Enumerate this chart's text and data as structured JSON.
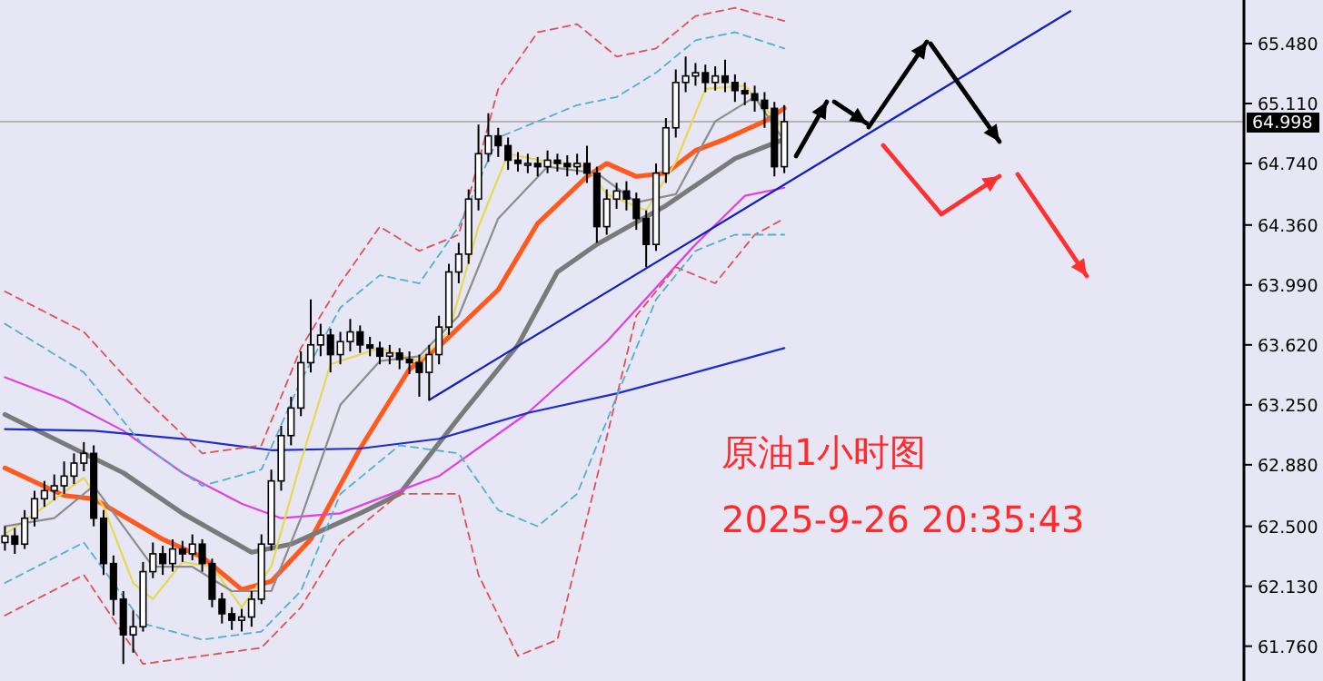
{
  "chart_data": {
    "type": "candlestick",
    "categories": [
      null,
      null,
      null,
      null,
      null,
      null,
      null,
      null,
      null,
      null,
      null,
      null,
      null,
      null,
      null,
      null,
      null,
      null,
      null,
      null,
      null,
      null,
      null,
      null,
      null,
      null,
      null,
      null,
      null,
      null,
      null,
      null,
      null,
      null,
      null,
      null,
      null,
      null,
      null,
      null,
      null,
      null,
      null,
      null,
      null,
      null,
      null,
      null,
      null,
      null,
      null,
      null,
      null,
      null,
      null,
      null,
      null,
      null,
      null,
      null,
      null,
      null,
      null,
      null,
      null,
      null,
      null,
      null,
      null,
      null,
      null,
      null,
      null,
      null,
      null,
      null,
      null,
      null,
      null,
      null,
      null,
      null,
      null,
      null,
      null,
      null,
      null,
      null,
      null,
      null,
      null,
      null,
      null,
      null,
      null,
      null,
      null,
      null,
      null,
      null,
      null,
      null,
      null,
      null,
      null,
      null,
      null,
      null,
      null,
      null,
      null,
      null,
      null,
      null,
      null,
      null,
      null,
      null,
      null,
      null,
      null,
      null,
      null,
      null,
      null,
      null
    ],
    "ohlc": [
      [
        62.4,
        62.5,
        62.35,
        62.44
      ],
      [
        62.44,
        62.49,
        62.33,
        62.39
      ],
      [
        62.39,
        62.6,
        62.36,
        62.55
      ],
      [
        62.55,
        62.72,
        62.5,
        62.67
      ],
      [
        62.67,
        62.78,
        62.62,
        62.72
      ],
      [
        62.72,
        62.82,
        62.66,
        62.75
      ],
      [
        62.75,
        62.9,
        62.7,
        62.81
      ],
      [
        62.81,
        62.95,
        62.76,
        62.89
      ],
      [
        62.89,
        63.02,
        62.84,
        62.95
      ],
      [
        62.95,
        63.0,
        62.5,
        62.55
      ],
      [
        62.55,
        62.6,
        62.2,
        62.27
      ],
      [
        62.27,
        62.32,
        61.95,
        62.05
      ],
      [
        62.05,
        62.1,
        61.65,
        61.83
      ],
      [
        61.83,
        61.98,
        61.72,
        61.88
      ],
      [
        61.88,
        62.28,
        61.85,
        62.22
      ],
      [
        62.22,
        62.4,
        62.18,
        62.33
      ],
      [
        62.33,
        62.38,
        62.2,
        62.27
      ],
      [
        62.27,
        62.42,
        62.22,
        62.36
      ],
      [
        62.36,
        62.41,
        62.28,
        62.33
      ],
      [
        62.33,
        62.45,
        62.29,
        62.39
      ],
      [
        62.39,
        62.42,
        62.22,
        62.27
      ],
      [
        62.27,
        62.3,
        62.0,
        62.05
      ],
      [
        62.05,
        62.09,
        61.9,
        61.96
      ],
      [
        61.96,
        62.0,
        61.86,
        61.92
      ],
      [
        61.92,
        61.99,
        61.85,
        61.94
      ],
      [
        61.94,
        62.1,
        61.88,
        62.05
      ],
      [
        62.05,
        62.45,
        62.02,
        62.39
      ],
      [
        62.39,
        62.85,
        62.35,
        62.78
      ],
      [
        62.78,
        63.12,
        62.72,
        63.06
      ],
      [
        63.06,
        63.3,
        63.0,
        63.23
      ],
      [
        63.23,
        63.58,
        63.18,
        63.51
      ],
      [
        63.51,
        63.9,
        63.45,
        63.62
      ],
      [
        63.62,
        63.75,
        63.55,
        63.68
      ],
      [
        63.68,
        63.72,
        63.45,
        63.56
      ],
      [
        63.56,
        63.7,
        63.5,
        63.64
      ],
      [
        63.64,
        63.78,
        63.58,
        63.7
      ],
      [
        63.7,
        63.74,
        63.57,
        63.62
      ],
      [
        63.62,
        63.67,
        63.55,
        63.6
      ],
      [
        63.6,
        63.64,
        63.5,
        63.55
      ],
      [
        63.55,
        63.62,
        63.5,
        63.57
      ],
      [
        63.57,
        63.6,
        63.47,
        63.53
      ],
      [
        63.53,
        63.58,
        63.44,
        63.51
      ],
      [
        63.51,
        63.56,
        63.3,
        63.45
      ],
      [
        63.45,
        63.62,
        63.28,
        63.56
      ],
      [
        63.56,
        63.8,
        63.5,
        63.73
      ],
      [
        63.73,
        64.12,
        63.68,
        64.07
      ],
      [
        64.07,
        64.25,
        64.0,
        64.18
      ],
      [
        64.18,
        64.58,
        64.12,
        64.52
      ],
      [
        64.52,
        64.98,
        64.45,
        64.8
      ],
      [
        64.8,
        65.05,
        64.75,
        64.91
      ],
      [
        64.91,
        64.96,
        64.78,
        64.85
      ],
      [
        64.85,
        64.9,
        64.7,
        64.76
      ],
      [
        64.76,
        64.81,
        64.69,
        64.74
      ],
      [
        64.74,
        64.8,
        64.68,
        64.74
      ],
      [
        64.74,
        64.78,
        64.66,
        64.72
      ],
      [
        64.72,
        64.82,
        64.68,
        64.76
      ],
      [
        64.76,
        64.8,
        64.69,
        64.74
      ],
      [
        64.74,
        64.79,
        64.66,
        64.72
      ],
      [
        64.72,
        64.8,
        64.67,
        64.74
      ],
      [
        64.74,
        64.85,
        64.62,
        64.68
      ],
      [
        64.68,
        64.72,
        64.25,
        64.35
      ],
      [
        64.35,
        64.58,
        64.3,
        64.52
      ],
      [
        64.52,
        64.62,
        64.46,
        64.57
      ],
      [
        64.57,
        64.63,
        64.45,
        64.52
      ],
      [
        64.52,
        64.56,
        64.33,
        64.4
      ],
      [
        64.4,
        64.45,
        64.1,
        64.24
      ],
      [
        64.24,
        64.74,
        64.2,
        64.68
      ],
      [
        64.68,
        65.02,
        64.62,
        64.96
      ],
      [
        64.96,
        65.32,
        64.9,
        65.24
      ],
      [
        65.24,
        65.4,
        65.18,
        65.28
      ],
      [
        65.28,
        65.36,
        65.22,
        65.3
      ],
      [
        65.3,
        65.35,
        65.18,
        65.24
      ],
      [
        65.24,
        65.34,
        65.19,
        65.28
      ],
      [
        65.28,
        65.38,
        65.18,
        65.24
      ],
      [
        65.24,
        65.29,
        65.12,
        65.19
      ],
      [
        65.19,
        65.24,
        65.1,
        65.17
      ],
      [
        65.17,
        65.22,
        65.06,
        65.13
      ],
      [
        65.13,
        65.18,
        64.96,
        65.08
      ],
      [
        65.08,
        65.12,
        64.66,
        64.72
      ],
      [
        64.72,
        65.1,
        64.68,
        64.998
      ],
      null,
      null,
      null,
      null,
      null,
      null,
      null,
      null,
      null,
      null,
      null,
      null,
      null,
      null,
      null,
      null,
      null,
      null,
      null,
      null,
      null,
      null,
      null,
      null,
      null,
      null,
      null,
      null,
      null,
      null,
      null,
      null,
      null,
      null,
      null,
      null,
      null,
      null,
      null,
      null,
      null,
      null,
      null,
      null,
      null,
      null
    ],
    "series": [
      {
        "type": "line",
        "color": "#ff5a1e",
        "values": [
          62.86,
          null,
          null,
          null,
          null,
          null,
          62.69,
          null,
          null,
          62.67,
          null,
          null,
          null,
          null,
          null,
          null,
          62.42,
          null,
          null,
          null,
          62.31,
          null,
          null,
          null,
          62.11,
          null,
          null,
          62.16,
          null,
          null,
          null,
          62.42,
          null,
          null,
          null,
          null,
          62.98,
          null,
          null,
          null,
          null,
          63.47,
          null,
          null,
          63.61,
          null,
          null,
          null,
          null,
          null,
          63.96,
          null,
          null,
          null,
          64.37,
          null,
          null,
          null,
          null,
          64.66,
          null,
          64.74,
          null,
          null,
          64.66,
          null,
          null,
          64.68,
          null,
          null,
          64.82,
          null,
          null,
          64.89,
          null,
          null,
          null,
          65.0,
          null,
          65.08,
          null,
          null,
          null,
          null,
          null,
          null,
          null,
          null,
          null,
          null,
          null,
          null,
          null,
          null,
          null,
          null,
          null,
          null,
          null,
          null,
          null,
          null,
          null,
          null,
          null,
          null,
          null,
          null,
          null,
          null,
          null,
          null,
          null,
          null,
          null,
          null,
          null,
          null,
          null,
          null,
          null,
          null,
          null,
          null,
          null,
          null
        ]
      },
      {
        "type": "line",
        "color": "#7a7a7a",
        "values": [
          63.19,
          null,
          null,
          null,
          null,
          null,
          null,
          62.98,
          null,
          null,
          null,
          null,
          62.83,
          null,
          null,
          null,
          null,
          null,
          62.58,
          null,
          null,
          null,
          null,
          null,
          null,
          62.34,
          null,
          null,
          null,
          62.39,
          null,
          null,
          null,
          null,
          null,
          null,
          62.58,
          null,
          null,
          null,
          62.7,
          null,
          null,
          null,
          null,
          null,
          63.17,
          null,
          null,
          null,
          null,
          null,
          63.62,
          null,
          null,
          null,
          64.07,
          null,
          null,
          null,
          64.24,
          null,
          null,
          null,
          null,
          null,
          null,
          64.48,
          null,
          null,
          null,
          null,
          null,
          null,
          64.77,
          null,
          null,
          null,
          null,
          64.89,
          null,
          null,
          null,
          null,
          null,
          null,
          null,
          null,
          null,
          null,
          null,
          null,
          null,
          null,
          null,
          null,
          null,
          null,
          null,
          null,
          null,
          null,
          null,
          null,
          null,
          null,
          null,
          null,
          null,
          null,
          null,
          null,
          null,
          null,
          null,
          null,
          null,
          null,
          null,
          null,
          null,
          null,
          null,
          null,
          null,
          null
        ]
      },
      {
        "type": "line",
        "color": "#e040e0",
        "values": [
          63.42,
          null,
          null,
          null,
          null,
          null,
          63.28,
          null,
          null,
          null,
          null,
          null,
          63.09,
          null,
          null,
          null,
          null,
          null,
          62.83,
          null,
          null,
          null,
          null,
          null,
          62.64,
          null,
          null,
          null,
          62.55,
          null,
          null,
          null,
          null,
          null,
          62.58,
          null,
          null,
          null,
          null,
          null,
          62.72,
          null,
          null,
          null,
          62.81,
          null,
          null,
          null,
          null,
          null,
          null,
          null,
          null,
          63.2,
          null,
          null,
          null,
          null,
          null,
          null,
          null,
          63.64,
          null,
          null,
          null,
          null,
          null,
          null,
          null,
          null,
          64.24,
          null,
          null,
          null,
          null,
          64.54,
          null,
          null,
          null,
          64.59,
          null,
          null,
          null,
          null,
          null,
          null,
          null,
          null,
          null,
          null,
          null,
          null,
          null,
          null,
          null,
          null,
          null,
          null,
          null,
          null,
          null,
          null,
          null,
          null,
          null,
          null,
          null,
          null,
          null,
          null,
          null,
          null,
          null,
          null,
          null,
          null,
          null,
          null,
          null,
          null,
          null,
          null,
          null,
          null,
          null,
          null
        ]
      },
      {
        "type": "line",
        "color": "#1c2ccf",
        "values": [
          63.1,
          null,
          null,
          null,
          null,
          null,
          null,
          null,
          null,
          63.09,
          null,
          null,
          null,
          null,
          null,
          null,
          null,
          null,
          63.04,
          null,
          null,
          null,
          null,
          null,
          null,
          null,
          null,
          62.97,
          null,
          null,
          null,
          null,
          null,
          null,
          null,
          null,
          62.98,
          null,
          null,
          null,
          null,
          null,
          null,
          null,
          63.04,
          null,
          null,
          null,
          null,
          null,
          null,
          null,
          null,
          63.2,
          null,
          null,
          null,
          null,
          null,
          null,
          null,
          null,
          63.32,
          null,
          null,
          null,
          null,
          null,
          null,
          null,
          63.45,
          null,
          null,
          null,
          null,
          null,
          null,
          null,
          null,
          63.6,
          null,
          null,
          null,
          null,
          null,
          null,
          null,
          null,
          null,
          null,
          null,
          null,
          null,
          null,
          null,
          null,
          null,
          null,
          null,
          null,
          null,
          null,
          null,
          null,
          null,
          null,
          null,
          null,
          null,
          null,
          null,
          null,
          null,
          null,
          null,
          null,
          null,
          null,
          null,
          null,
          null,
          null,
          null,
          null,
          null,
          null
        ]
      },
      {
        "type": "line",
        "color": "#e8d850",
        "values": [
          62.45,
          null,
          null,
          null,
          62.62,
          null,
          null,
          null,
          62.8,
          null,
          62.62,
          null,
          null,
          62.15,
          null,
          62.05,
          null,
          null,
          62.28,
          null,
          null,
          62.25,
          null,
          null,
          62.0,
          null,
          null,
          62.25,
          null,
          null,
          62.9,
          null,
          null,
          63.5,
          null,
          null,
          null,
          null,
          63.6,
          null,
          null,
          null,
          63.52,
          null,
          null,
          63.7,
          null,
          null,
          64.35,
          null,
          null,
          64.8,
          null,
          null,
          null,
          64.75,
          null,
          null,
          null,
          64.72,
          null,
          64.55,
          null,
          null,
          null,
          64.45,
          null,
          null,
          64.75,
          null,
          null,
          65.2,
          null,
          null,
          null,
          65.22,
          null,
          null,
          null,
          64.95,
          null,
          null,
          null,
          null,
          null,
          null,
          null,
          null,
          null,
          null,
          null,
          null,
          null,
          null,
          null,
          null,
          null,
          null,
          null,
          null,
          null,
          null,
          null,
          null,
          null,
          null,
          null,
          null,
          null,
          null,
          null,
          null,
          null,
          null,
          null,
          null,
          null,
          null,
          null,
          null,
          null,
          null,
          null,
          null,
          null,
          null
        ]
      },
      {
        "type": "line",
        "color": "#8c8c8c",
        "values": [
          62.5,
          null,
          null,
          null,
          null,
          62.55,
          null,
          null,
          null,
          62.75,
          null,
          null,
          62.5,
          null,
          null,
          62.25,
          null,
          null,
          null,
          62.25,
          null,
          null,
          null,
          62.1,
          null,
          null,
          null,
          62.1,
          null,
          null,
          62.55,
          null,
          null,
          null,
          63.25,
          null,
          null,
          null,
          63.52,
          null,
          null,
          null,
          63.55,
          null,
          null,
          null,
          63.8,
          null,
          null,
          null,
          64.4,
          null,
          null,
          null,
          null,
          64.72,
          null,
          null,
          null,
          null,
          64.68,
          null,
          null,
          null,
          64.5,
          null,
          null,
          null,
          64.55,
          null,
          null,
          null,
          65.0,
          null,
          null,
          null,
          65.15,
          null,
          null,
          64.88,
          null,
          null,
          null,
          null,
          null,
          null,
          null,
          null,
          null,
          null,
          null,
          null,
          null,
          null,
          null,
          null,
          null,
          null,
          null,
          null,
          null,
          null,
          null,
          null,
          null,
          null,
          null,
          null,
          null,
          null,
          null,
          null,
          null,
          null,
          null,
          null,
          null,
          null,
          null,
          null,
          null,
          null,
          null,
          null,
          null,
          null
        ]
      },
      {
        "type": "line",
        "line_style": "dashed",
        "color": "#e05050",
        "values": [
          63.95,
          null,
          null,
          null,
          null,
          null,
          null,
          null,
          63.7,
          null,
          null,
          null,
          null,
          null,
          63.3,
          null,
          null,
          null,
          null,
          null,
          62.95,
          null,
          null,
          null,
          null,
          null,
          63.0,
          null,
          null,
          null,
          63.6,
          null,
          null,
          null,
          64.0,
          null,
          null,
          null,
          64.35,
          null,
          null,
          null,
          64.2,
          null,
          null,
          null,
          64.3,
          null,
          null,
          null,
          65.2,
          null,
          null,
          null,
          65.55,
          null,
          null,
          null,
          65.6,
          null,
          null,
          null,
          65.4,
          null,
          null,
          null,
          65.45,
          null,
          null,
          null,
          65.65,
          null,
          null,
          null,
          65.7,
          null,
          null,
          null,
          null,
          65.62,
          null,
          null,
          null,
          null,
          null,
          null,
          null,
          null,
          null,
          null,
          null,
          null,
          null,
          null,
          null,
          null,
          null,
          null,
          null,
          null,
          null,
          null,
          null,
          null,
          null,
          null,
          null,
          null,
          null,
          null,
          null,
          null,
          null,
          null,
          null,
          null,
          null,
          null,
          null,
          null,
          null,
          null,
          null,
          null,
          null,
          null
        ]
      },
      {
        "type": "line",
        "line_style": "dashed",
        "color": "#e05050",
        "values": [
          61.95,
          null,
          null,
          null,
          null,
          null,
          null,
          null,
          62.2,
          null,
          null,
          null,
          null,
          null,
          61.65,
          null,
          null,
          null,
          null,
          null,
          61.7,
          null,
          null,
          null,
          null,
          null,
          61.75,
          null,
          null,
          null,
          62.0,
          null,
          null,
          null,
          62.4,
          null,
          null,
          null,
          null,
          null,
          62.7,
          null,
          null,
          null,
          null,
          null,
          62.7,
          null,
          62.2,
          null,
          null,
          null,
          61.7,
          null,
          null,
          null,
          61.8,
          null,
          null,
          null,
          62.8,
          null,
          null,
          null,
          63.8,
          null,
          null,
          null,
          64.1,
          null,
          null,
          null,
          64.0,
          null,
          null,
          null,
          64.3,
          null,
          null,
          64.4,
          null,
          null,
          null,
          null,
          null,
          null,
          null,
          null,
          null,
          null,
          null,
          null,
          null,
          null,
          null,
          null,
          null,
          null,
          null,
          null,
          null,
          null,
          null,
          null,
          null,
          null,
          null,
          null,
          null,
          null,
          null,
          null,
          null,
          null,
          null,
          null,
          null,
          null,
          null,
          null,
          null,
          null,
          null,
          null,
          null,
          null
        ]
      },
      {
        "type": "line",
        "line_style": "dashed",
        "color": "#50b0d0",
        "values": [
          63.75,
          null,
          null,
          null,
          null,
          null,
          null,
          null,
          63.45,
          null,
          null,
          null,
          null,
          null,
          63.0,
          null,
          null,
          null,
          null,
          null,
          62.75,
          null,
          null,
          null,
          null,
          null,
          62.85,
          null,
          null,
          null,
          63.4,
          null,
          null,
          null,
          63.85,
          null,
          null,
          null,
          64.05,
          null,
          null,
          null,
          64.0,
          null,
          null,
          null,
          64.35,
          null,
          null,
          null,
          64.9,
          null,
          null,
          null,
          65.0,
          null,
          null,
          null,
          65.1,
          null,
          null,
          null,
          65.15,
          null,
          null,
          null,
          65.3,
          null,
          null,
          null,
          65.5,
          null,
          null,
          null,
          65.55,
          null,
          null,
          null,
          null,
          65.45,
          null,
          null,
          null,
          null,
          null,
          null,
          null,
          null,
          null,
          null,
          null,
          null,
          null,
          null,
          null,
          null,
          null,
          null,
          null,
          null,
          null,
          null,
          null,
          null,
          null,
          null,
          null,
          null,
          null,
          null,
          null,
          null,
          null,
          null,
          null,
          null,
          null,
          null,
          null,
          null,
          null,
          null,
          null,
          null,
          null,
          null
        ]
      },
      {
        "type": "line",
        "line_style": "dashed",
        "color": "#50b0d0",
        "values": [
          62.15,
          null,
          null,
          null,
          null,
          null,
          null,
          null,
          62.4,
          null,
          null,
          null,
          null,
          null,
          61.9,
          null,
          null,
          null,
          null,
          null,
          61.8,
          null,
          null,
          null,
          null,
          null,
          61.85,
          null,
          null,
          null,
          62.1,
          null,
          null,
          null,
          62.7,
          null,
          null,
          null,
          null,
          null,
          63.0,
          null,
          null,
          null,
          null,
          null,
          62.95,
          null,
          null,
          null,
          62.6,
          null,
          null,
          null,
          62.5,
          null,
          null,
          null,
          62.7,
          null,
          null,
          null,
          63.3,
          null,
          null,
          null,
          63.9,
          null,
          null,
          null,
          64.2,
          null,
          null,
          null,
          64.3,
          null,
          null,
          null,
          null,
          64.3,
          null,
          null,
          null,
          null,
          null,
          null,
          null,
          null,
          null,
          null,
          null,
          null,
          null,
          null,
          null,
          null,
          null,
          null,
          null,
          null,
          null,
          null,
          null,
          null,
          null,
          null,
          null,
          null,
          null,
          null,
          null,
          null,
          null,
          null,
          null,
          null,
          null,
          null,
          null,
          null,
          null,
          null,
          null,
          null,
          null,
          null
        ]
      },
      {
        "type": "line",
        "color": "#1020c0",
        "values": [
          null,
          null,
          null,
          null,
          null,
          null,
          null,
          null,
          null,
          null,
          null,
          null,
          null,
          null,
          null,
          null,
          null,
          null,
          null,
          null,
          null,
          null,
          null,
          null,
          null,
          null,
          null,
          null,
          null,
          null,
          null,
          null,
          null,
          null,
          null,
          null,
          null,
          null,
          null,
          null,
          null,
          null,
          null,
          63.28,
          null,
          null,
          null,
          null,
          null,
          null,
          null,
          null,
          null,
          null,
          null,
          null,
          null,
          null,
          null,
          null,
          null,
          null,
          null,
          null,
          null,
          null,
          null,
          null,
          null,
          null,
          null,
          null,
          null,
          null,
          null,
          null,
          null,
          null,
          null,
          null,
          null,
          null,
          null,
          null,
          null,
          null,
          null,
          null,
          null,
          null,
          null,
          null,
          null,
          null,
          null,
          null,
          null,
          null,
          null,
          null,
          null,
          null,
          null,
          null,
          null,
          null,
          null,
          null,
          65.68,
          null,
          null,
          null,
          null,
          null,
          null,
          null,
          null,
          null,
          null,
          null,
          null,
          null,
          null,
          null,
          null,
          null
        ]
      }
    ],
    "ylim": [
      61.545,
      65.749
    ],
    "yticks": [
      {
        "value": 65.48,
        "label": "65.480"
      },
      {
        "value": 65.11,
        "label": "65.110"
      },
      {
        "value": 64.74,
        "label": "64.740"
      },
      {
        "value": 64.36,
        "label": "64.360"
      },
      {
        "value": 63.99,
        "label": "63.990"
      },
      {
        "value": 63.62,
        "label": "63.620"
      },
      {
        "value": 63.25,
        "label": "63.250"
      },
      {
        "value": 62.88,
        "label": "62.880"
      },
      {
        "value": 62.5,
        "label": "62.500"
      },
      {
        "value": 62.13,
        "label": "62.130"
      },
      {
        "value": 61.76,
        "label": "61.760"
      }
    ],
    "tick_labels": "y",
    "ref_lines": [
      {
        "axis": "y",
        "value": 64.998,
        "label": "64.998",
        "color": "#b4b4b4"
      }
    ],
    "annotations": [
      "原油1小时图",
      "2025-9-26 20:35:43"
    ]
  }
}
